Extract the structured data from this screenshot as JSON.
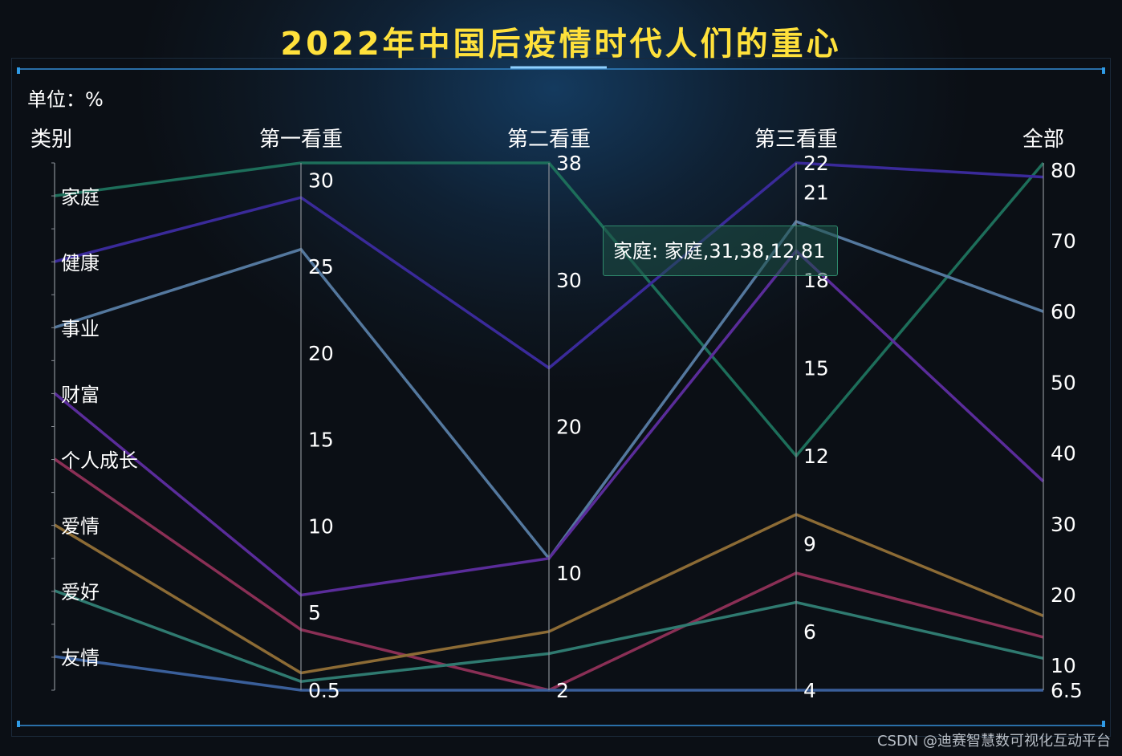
{
  "title": "2022年中国后疫情时代人们的重心",
  "unit_label": "单位：%",
  "watermark": "CSDN @迪赛智慧数可视化互动平台",
  "tooltip": "家庭: 家庭,31,38,12,81",
  "colors": {
    "title": "#ffe13b",
    "background": "#0d1620",
    "axis_line": "#8a8f96"
  },
  "chart_data": {
    "type": "parallel",
    "title": "2022年中国后疫情时代人们的重心",
    "unit": "%",
    "axes": [
      {
        "name": "类别",
        "type": "category",
        "categories": [
          "家庭",
          "健康",
          "事业",
          "财富",
          "个人成长",
          "爱情",
          "爱好",
          "友情"
        ]
      },
      {
        "name": "第一看重",
        "min": 0.5,
        "max": 31,
        "ticks": [
          0.5,
          5,
          10,
          15,
          20,
          25,
          30
        ]
      },
      {
        "name": "第二看重",
        "min": 2,
        "max": 38,
        "ticks": [
          2,
          10,
          20,
          30,
          38
        ]
      },
      {
        "name": "第三看重",
        "min": 4,
        "max": 22,
        "ticks": [
          4,
          6,
          9,
          12,
          15,
          18,
          21,
          22
        ]
      },
      {
        "name": "全部",
        "min": 6.5,
        "max": 81,
        "ticks": [
          6.5,
          10,
          20,
          30,
          40,
          50,
          60,
          70,
          80
        ]
      }
    ],
    "series": [
      {
        "name": "家庭",
        "values": [
          "家庭",
          31,
          38,
          12,
          81
        ],
        "color": "#1d6e5a"
      },
      {
        "name": "健康",
        "values": [
          "健康",
          29,
          24,
          22,
          79
        ],
        "color": "#3a2a9a"
      },
      {
        "name": "事业",
        "values": [
          "事业",
          26,
          11,
          20,
          60
        ],
        "color": "#54789e"
      },
      {
        "name": "财富",
        "values": [
          "财富",
          6,
          11,
          19,
          36
        ],
        "color": "#5a2c9a"
      },
      {
        "name": "个人成长",
        "values": [
          "个人成长",
          4,
          2,
          8,
          14
        ],
        "color": "#8a2f55"
      },
      {
        "name": "爱情",
        "values": [
          "爱情",
          1.5,
          6,
          10,
          17
        ],
        "color": "#8c6b35"
      },
      {
        "name": "爱好",
        "values": [
          "爱好",
          1,
          4.5,
          7,
          11
        ],
        "color": "#2f7a70"
      },
      {
        "name": "友情",
        "values": [
          "友情",
          0.5,
          2,
          4,
          6.5
        ],
        "color": "#3a5f9a"
      }
    ]
  }
}
